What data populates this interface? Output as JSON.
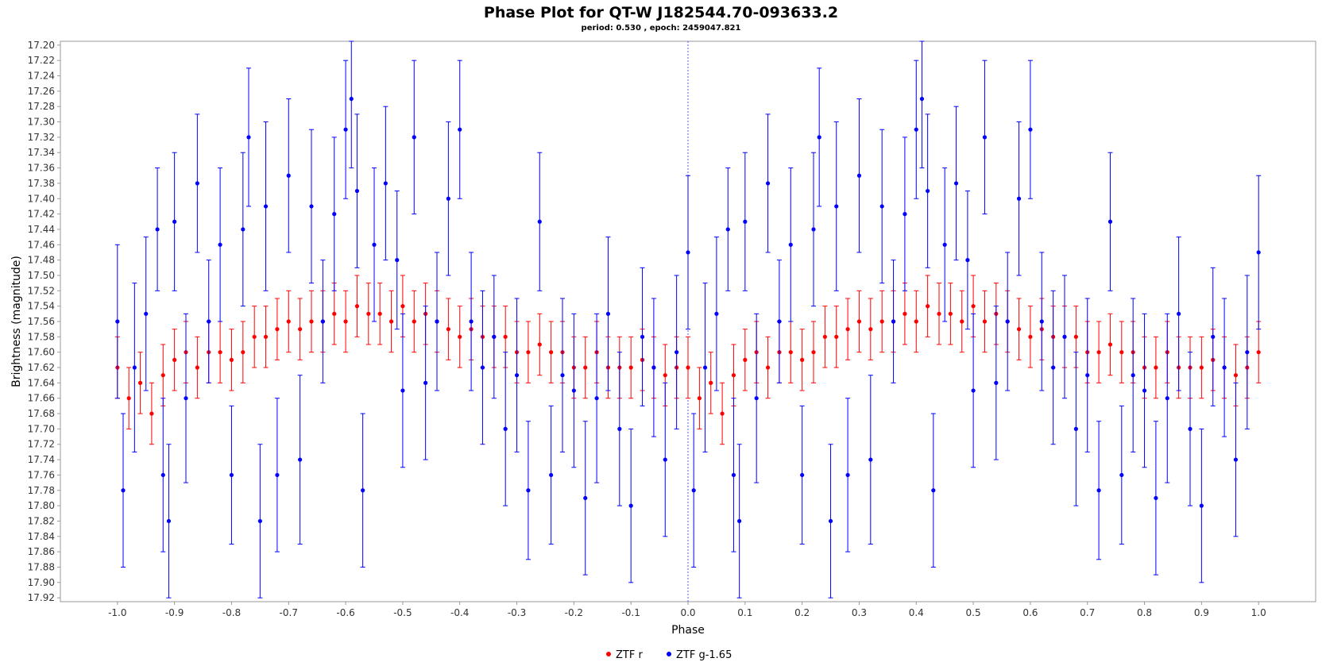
{
  "chart_data": {
    "type": "scatter",
    "title": "Phase Plot for QT-W J182544.70-093633.2",
    "subtitle": "period: 0.530       , epoch: 2459047.821",
    "xlabel": "Phase",
    "ylabel": "Brightness (magnitude)",
    "xlim": [
      -1.1,
      1.1
    ],
    "ylim": [
      17.925,
      17.195
    ],
    "y_inverted": true,
    "grid": false,
    "reference_line_x": 0.0,
    "legend_position": "bottom-center",
    "x_ticks": [
      "-1.0",
      "-0.9",
      "-0.8",
      "-0.7",
      "-0.6",
      "-0.5",
      "-0.4",
      "-0.3",
      "-0.2",
      "-0.1",
      "0.0",
      "0.1",
      "0.2",
      "0.3",
      "0.4",
      "0.5",
      "0.6",
      "0.7",
      "0.8",
      "0.9",
      "1.0"
    ],
    "y_ticks": [
      "17.20",
      "17.22",
      "17.24",
      "17.26",
      "17.28",
      "17.30",
      "17.32",
      "17.34",
      "17.36",
      "17.38",
      "17.40",
      "17.42",
      "17.44",
      "17.46",
      "17.48",
      "17.50",
      "17.52",
      "17.54",
      "17.56",
      "17.58",
      "17.60",
      "17.62",
      "17.64",
      "17.66",
      "17.68",
      "17.70",
      "17.72",
      "17.74",
      "17.76",
      "17.78",
      "17.80",
      "17.82",
      "17.84",
      "17.86",
      "17.88",
      "17.90",
      "17.92"
    ],
    "series": [
      {
        "name": "ZTF r",
        "color": "#ff0000",
        "marker": "circle",
        "points": [
          [
            -1.0,
            17.62,
            0.04
          ],
          [
            -0.98,
            17.66,
            0.04
          ],
          [
            -0.96,
            17.64,
            0.04
          ],
          [
            -0.94,
            17.68,
            0.04
          ],
          [
            -0.92,
            17.63,
            0.04
          ],
          [
            -0.9,
            17.61,
            0.04
          ],
          [
            -0.88,
            17.6,
            0.04
          ],
          [
            -0.86,
            17.62,
            0.04
          ],
          [
            -0.84,
            17.6,
            0.04
          ],
          [
            -0.82,
            17.6,
            0.04
          ],
          [
            -0.8,
            17.61,
            0.04
          ],
          [
            -0.78,
            17.6,
            0.04
          ],
          [
            -0.76,
            17.58,
            0.04
          ],
          [
            -0.74,
            17.58,
            0.04
          ],
          [
            -0.72,
            17.57,
            0.04
          ],
          [
            -0.7,
            17.56,
            0.04
          ],
          [
            -0.68,
            17.57,
            0.04
          ],
          [
            -0.66,
            17.56,
            0.04
          ],
          [
            -0.64,
            17.56,
            0.04
          ],
          [
            -0.62,
            17.55,
            0.04
          ],
          [
            -0.6,
            17.56,
            0.04
          ],
          [
            -0.58,
            17.54,
            0.04
          ],
          [
            -0.56,
            17.55,
            0.04
          ],
          [
            -0.54,
            17.55,
            0.04
          ],
          [
            -0.52,
            17.56,
            0.04
          ],
          [
            -0.5,
            17.54,
            0.04
          ],
          [
            -0.48,
            17.56,
            0.04
          ],
          [
            -0.46,
            17.55,
            0.04
          ],
          [
            -0.44,
            17.56,
            0.04
          ],
          [
            -0.42,
            17.57,
            0.04
          ],
          [
            -0.4,
            17.58,
            0.04
          ],
          [
            -0.38,
            17.57,
            0.04
          ],
          [
            -0.36,
            17.58,
            0.04
          ],
          [
            -0.34,
            17.58,
            0.04
          ],
          [
            -0.32,
            17.58,
            0.04
          ],
          [
            -0.3,
            17.6,
            0.04
          ],
          [
            -0.28,
            17.6,
            0.04
          ],
          [
            -0.26,
            17.59,
            0.04
          ],
          [
            -0.24,
            17.6,
            0.04
          ],
          [
            -0.22,
            17.6,
            0.04
          ],
          [
            -0.2,
            17.62,
            0.04
          ],
          [
            -0.18,
            17.62,
            0.04
          ],
          [
            -0.16,
            17.6,
            0.04
          ],
          [
            -0.14,
            17.62,
            0.04
          ],
          [
            -0.12,
            17.62,
            0.04
          ],
          [
            -0.1,
            17.62,
            0.04
          ],
          [
            -0.08,
            17.61,
            0.04
          ],
          [
            -0.06,
            17.62,
            0.04
          ],
          [
            -0.04,
            17.63,
            0.04
          ],
          [
            -0.02,
            17.62,
            0.04
          ],
          [
            0.0,
            17.62,
            0.04
          ],
          [
            0.02,
            17.66,
            0.04
          ],
          [
            0.04,
            17.64,
            0.04
          ],
          [
            0.06,
            17.68,
            0.04
          ],
          [
            0.08,
            17.63,
            0.04
          ],
          [
            0.1,
            17.61,
            0.04
          ],
          [
            0.12,
            17.6,
            0.04
          ],
          [
            0.14,
            17.62,
            0.04
          ],
          [
            0.16,
            17.6,
            0.04
          ],
          [
            0.18,
            17.6,
            0.04
          ],
          [
            0.2,
            17.61,
            0.04
          ],
          [
            0.22,
            17.6,
            0.04
          ],
          [
            0.24,
            17.58,
            0.04
          ],
          [
            0.26,
            17.58,
            0.04
          ],
          [
            0.28,
            17.57,
            0.04
          ],
          [
            0.3,
            17.56,
            0.04
          ],
          [
            0.32,
            17.57,
            0.04
          ],
          [
            0.34,
            17.56,
            0.04
          ],
          [
            0.36,
            17.56,
            0.04
          ],
          [
            0.38,
            17.55,
            0.04
          ],
          [
            0.4,
            17.56,
            0.04
          ],
          [
            0.42,
            17.54,
            0.04
          ],
          [
            0.44,
            17.55,
            0.04
          ],
          [
            0.46,
            17.55,
            0.04
          ],
          [
            0.48,
            17.56,
            0.04
          ],
          [
            0.5,
            17.54,
            0.04
          ],
          [
            0.52,
            17.56,
            0.04
          ],
          [
            0.54,
            17.55,
            0.04
          ],
          [
            0.56,
            17.56,
            0.04
          ],
          [
            0.58,
            17.57,
            0.04
          ],
          [
            0.6,
            17.58,
            0.04
          ],
          [
            0.62,
            17.57,
            0.04
          ],
          [
            0.64,
            17.58,
            0.04
          ],
          [
            0.66,
            17.58,
            0.04
          ],
          [
            0.68,
            17.58,
            0.04
          ],
          [
            0.7,
            17.6,
            0.04
          ],
          [
            0.72,
            17.6,
            0.04
          ],
          [
            0.74,
            17.59,
            0.04
          ],
          [
            0.76,
            17.6,
            0.04
          ],
          [
            0.78,
            17.6,
            0.04
          ],
          [
            0.8,
            17.62,
            0.04
          ],
          [
            0.82,
            17.62,
            0.04
          ],
          [
            0.84,
            17.6,
            0.04
          ],
          [
            0.86,
            17.62,
            0.04
          ],
          [
            0.88,
            17.62,
            0.04
          ],
          [
            0.9,
            17.62,
            0.04
          ],
          [
            0.92,
            17.61,
            0.04
          ],
          [
            0.94,
            17.62,
            0.04
          ],
          [
            0.96,
            17.63,
            0.04
          ],
          [
            0.98,
            17.62,
            0.04
          ],
          [
            1.0,
            17.6,
            0.04
          ]
        ]
      },
      {
        "name": "ZTF g-1.65",
        "color": "#0000ff",
        "marker": "circle",
        "points": [
          [
            -1.0,
            17.56,
            0.1
          ],
          [
            -0.99,
            17.78,
            0.1
          ],
          [
            -0.97,
            17.62,
            0.11
          ],
          [
            -0.95,
            17.55,
            0.1
          ],
          [
            -0.93,
            17.44,
            0.08
          ],
          [
            -0.92,
            17.76,
            0.1
          ],
          [
            -0.91,
            17.82,
            0.1
          ],
          [
            -0.9,
            17.43,
            0.09
          ],
          [
            -0.88,
            17.66,
            0.11
          ],
          [
            -0.86,
            17.38,
            0.09
          ],
          [
            -0.84,
            17.56,
            0.08
          ],
          [
            -0.82,
            17.46,
            0.1
          ],
          [
            -0.8,
            17.76,
            0.09
          ],
          [
            -0.78,
            17.44,
            0.1
          ],
          [
            -0.77,
            17.32,
            0.09
          ],
          [
            -0.75,
            17.82,
            0.1
          ],
          [
            -0.74,
            17.41,
            0.11
          ],
          [
            -0.72,
            17.76,
            0.1
          ],
          [
            -0.7,
            17.37,
            0.1
          ],
          [
            -0.68,
            17.74,
            0.11
          ],
          [
            -0.66,
            17.41,
            0.1
          ],
          [
            -0.64,
            17.56,
            0.08
          ],
          [
            -0.62,
            17.42,
            0.1
          ],
          [
            -0.6,
            17.31,
            0.09
          ],
          [
            -0.59,
            17.27,
            0.09
          ],
          [
            -0.58,
            17.39,
            0.1
          ],
          [
            -0.57,
            17.78,
            0.1
          ],
          [
            -0.55,
            17.46,
            0.1
          ],
          [
            -0.53,
            17.38,
            0.1
          ],
          [
            -0.51,
            17.48,
            0.09
          ],
          [
            -0.5,
            17.65,
            0.1
          ],
          [
            -0.48,
            17.32,
            0.1
          ],
          [
            -0.46,
            17.64,
            0.1
          ],
          [
            -0.44,
            17.56,
            0.09
          ],
          [
            -0.42,
            17.4,
            0.1
          ],
          [
            -0.4,
            17.31,
            0.09
          ],
          [
            -0.38,
            17.56,
            0.09
          ],
          [
            -0.36,
            17.62,
            0.1
          ],
          [
            -0.34,
            17.58,
            0.08
          ],
          [
            -0.32,
            17.7,
            0.1
          ],
          [
            -0.3,
            17.63,
            0.1
          ],
          [
            -0.28,
            17.78,
            0.09
          ],
          [
            -0.26,
            17.43,
            0.09
          ],
          [
            -0.24,
            17.76,
            0.09
          ],
          [
            -0.22,
            17.63,
            0.1
          ],
          [
            -0.2,
            17.65,
            0.1
          ],
          [
            -0.18,
            17.79,
            0.1
          ],
          [
            -0.16,
            17.66,
            0.11
          ],
          [
            -0.14,
            17.55,
            0.1
          ],
          [
            -0.12,
            17.7,
            0.1
          ],
          [
            -0.1,
            17.8,
            0.1
          ],
          [
            -0.08,
            17.58,
            0.09
          ],
          [
            -0.06,
            17.62,
            0.09
          ],
          [
            -0.04,
            17.74,
            0.1
          ],
          [
            -0.02,
            17.6,
            0.1
          ],
          [
            0.0,
            17.47,
            0.1
          ],
          [
            0.01,
            17.78,
            0.1
          ],
          [
            0.03,
            17.62,
            0.11
          ],
          [
            0.05,
            17.55,
            0.1
          ],
          [
            0.07,
            17.44,
            0.08
          ],
          [
            0.08,
            17.76,
            0.1
          ],
          [
            0.09,
            17.82,
            0.1
          ],
          [
            0.1,
            17.43,
            0.09
          ],
          [
            0.12,
            17.66,
            0.11
          ],
          [
            0.14,
            17.38,
            0.09
          ],
          [
            0.16,
            17.56,
            0.08
          ],
          [
            0.18,
            17.46,
            0.1
          ],
          [
            0.2,
            17.76,
            0.09
          ],
          [
            0.22,
            17.44,
            0.1
          ],
          [
            0.23,
            17.32,
            0.09
          ],
          [
            0.25,
            17.82,
            0.1
          ],
          [
            0.26,
            17.41,
            0.11
          ],
          [
            0.28,
            17.76,
            0.1
          ],
          [
            0.3,
            17.37,
            0.1
          ],
          [
            0.32,
            17.74,
            0.11
          ],
          [
            0.34,
            17.41,
            0.1
          ],
          [
            0.36,
            17.56,
            0.08
          ],
          [
            0.38,
            17.42,
            0.1
          ],
          [
            0.4,
            17.31,
            0.09
          ],
          [
            0.41,
            17.27,
            0.09
          ],
          [
            0.42,
            17.39,
            0.1
          ],
          [
            0.43,
            17.78,
            0.1
          ],
          [
            0.45,
            17.46,
            0.1
          ],
          [
            0.47,
            17.38,
            0.1
          ],
          [
            0.49,
            17.48,
            0.09
          ],
          [
            0.5,
            17.65,
            0.1
          ],
          [
            0.52,
            17.32,
            0.1
          ],
          [
            0.54,
            17.64,
            0.1
          ],
          [
            0.56,
            17.56,
            0.09
          ],
          [
            0.58,
            17.4,
            0.1
          ],
          [
            0.6,
            17.31,
            0.09
          ],
          [
            0.62,
            17.56,
            0.09
          ],
          [
            0.64,
            17.62,
            0.1
          ],
          [
            0.66,
            17.58,
            0.08
          ],
          [
            0.68,
            17.7,
            0.1
          ],
          [
            0.7,
            17.63,
            0.1
          ],
          [
            0.72,
            17.78,
            0.09
          ],
          [
            0.74,
            17.43,
            0.09
          ],
          [
            0.76,
            17.76,
            0.09
          ],
          [
            0.78,
            17.63,
            0.1
          ],
          [
            0.8,
            17.65,
            0.1
          ],
          [
            0.82,
            17.79,
            0.1
          ],
          [
            0.84,
            17.66,
            0.11
          ],
          [
            0.86,
            17.55,
            0.1
          ],
          [
            0.88,
            17.7,
            0.1
          ],
          [
            0.9,
            17.8,
            0.1
          ],
          [
            0.92,
            17.58,
            0.09
          ],
          [
            0.94,
            17.62,
            0.09
          ],
          [
            0.96,
            17.74,
            0.1
          ],
          [
            0.98,
            17.6,
            0.1
          ],
          [
            1.0,
            17.47,
            0.1
          ]
        ]
      }
    ]
  }
}
